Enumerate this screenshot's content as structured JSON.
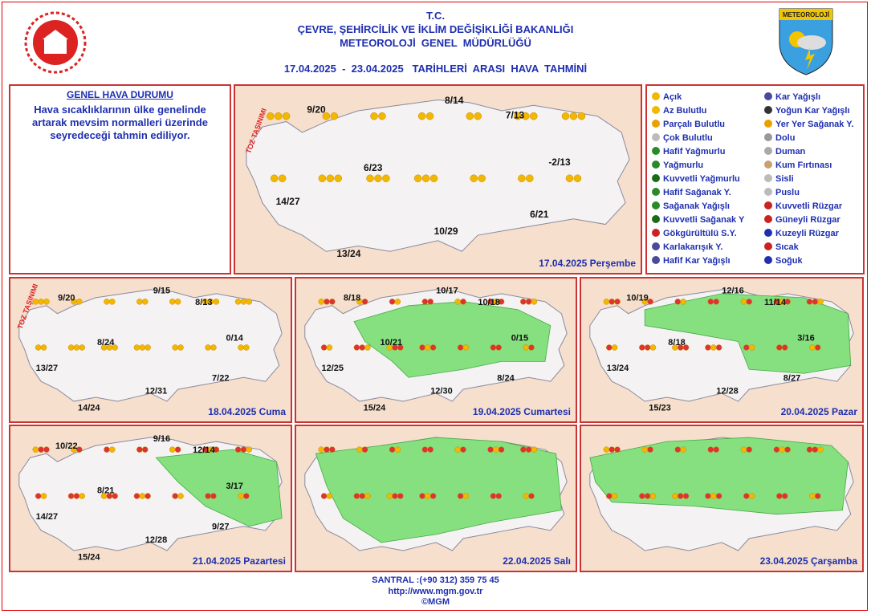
{
  "header": {
    "tc": "T.C.",
    "ministry": "ÇEVRE, ŞEHİRCİLİK VE İKLİM DEĞİŞİKLİĞİ BAKANLIĞI",
    "directorate": "METEOROLOJİ  GENEL  MÜDÜRLÜĞÜ",
    "title": "17.04.2025  -  23.04.2025   TARİHLERİ  ARASI  HAVA  TAHMİNİ",
    "logo_text": "METEOROLOJİ"
  },
  "general": {
    "title": "GENEL HAVA DURUMU",
    "text": "Hava sıcaklıklarının ülke genelinde artarak mevsim normalleri üzerinde seyredeceği tahmin ediliyor."
  },
  "legend": [
    "Açık",
    "Az Bulutlu",
    "Parçalı Bulutlu",
    "Çok Bulutlu",
    "Hafif Yağmurlu",
    "Yağmurlu",
    "Kuvvetli Yağmurlu",
    "Hafif Sağanak Y.",
    "Sağanak Yağışlı",
    "Kuvvetli Sağanak Y",
    "Gökgürültülü S.Y.",
    "Karlakarışık Y.",
    "Hafif Kar Yağışlı",
    "Kar Yağışlı",
    "Yoğun Kar Yağışlı",
    "Yer Yer Sağanak Y.",
    "Dolu",
    "Duman",
    "Kum Fırtınası",
    "Sisli",
    "Puslu",
    "Kuvvetli Rüzgar",
    "Güneyli Rüzgar",
    "Kuzeyli Rüzgar",
    "Sıcak",
    "Soğuk"
  ],
  "maps": [
    {
      "date": "17.04.2025 Perşembe",
      "note": "TOZ TAŞINIMI",
      "temps": [
        "9/20",
        "8/14",
        "7/13",
        "6/23",
        "-2/13",
        "14/27",
        "6/21",
        "10/29",
        "13/24"
      ]
    },
    {
      "date": "18.04.2025 Cuma",
      "note": "TOZ TAŞINIMI",
      "temps": [
        "9/20",
        "9/15",
        "8/13",
        "8/24",
        "0/14",
        "13/27",
        "7/22",
        "12/31",
        "14/24"
      ]
    },
    {
      "date": "19.04.2025 Cumartesi",
      "temps": [
        "8/18",
        "10/17",
        "10/18",
        "10/21",
        "0/15",
        "12/25",
        "8/24",
        "12/30",
        "15/24"
      ]
    },
    {
      "date": "20.04.2025 Pazar",
      "temps": [
        "10/19",
        "12/16",
        "11/14",
        "8/18",
        "3/16",
        "13/24",
        "8/27",
        "12/28",
        "15/23"
      ]
    },
    {
      "date": "21.04.2025 Pazartesi",
      "temps": [
        "10/22",
        "9/16",
        "12/14",
        "8/21",
        "3/17",
        "14/27",
        "9/27",
        "12/28",
        "15/24"
      ]
    },
    {
      "date": "22.04.2025 Salı"
    },
    {
      "date": "23.04.2025 Çarşamba"
    }
  ],
  "footer": {
    "phone": "SANTRAL :(+90 312) 359 75 45",
    "url": "http://www.mgm.gov.tr",
    "copyright": "©MGM"
  }
}
